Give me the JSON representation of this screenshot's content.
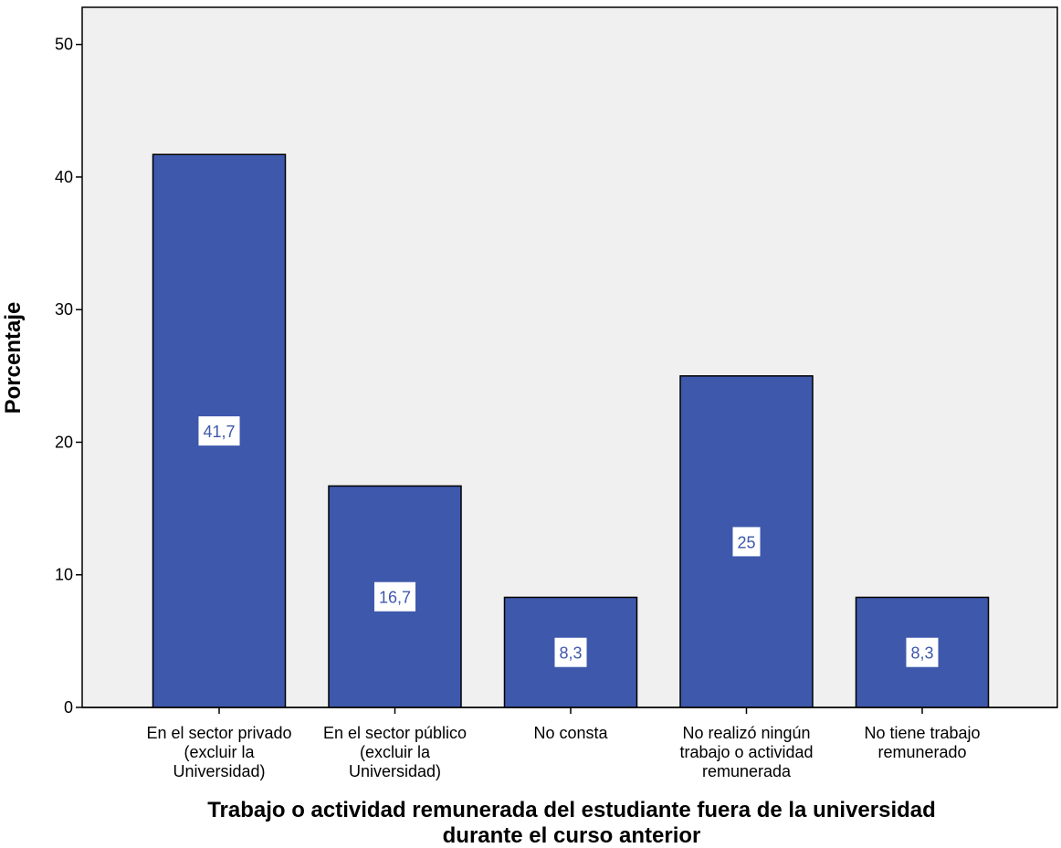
{
  "chart_data": {
    "type": "bar",
    "x_label": [
      "Trabajo o actividad remunerada del estudiante fuera de la universidad",
      "durante el curso anterior"
    ],
    "y_label": "Porcentaje",
    "categories": [
      [
        "En el sector privado",
        "(excluir la",
        "Universidad)"
      ],
      [
        "En el sector público",
        "(excluir la",
        "Universidad)"
      ],
      [
        "No consta"
      ],
      [
        "No realizó ningún",
        "trabajo o actividad",
        "remunerada"
      ],
      [
        "No tiene trabajo",
        "remunerado"
      ]
    ],
    "values": [
      41.7,
      16.7,
      8.3,
      25,
      8.3
    ],
    "value_labels": [
      "41,7",
      "16,7",
      "8,3",
      "25",
      "8,3"
    ],
    "color": "#3e58ac",
    "ylim": [
      0,
      52.8
    ],
    "yticks": [
      0,
      10,
      20,
      30,
      40,
      50
    ]
  }
}
